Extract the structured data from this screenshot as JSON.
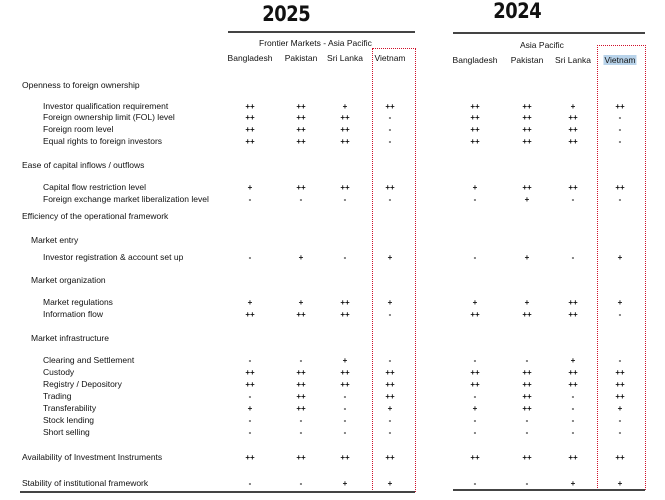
{
  "years": {
    "left": "2025",
    "right": "2024"
  },
  "groups": {
    "left": "Frontier Markets - Asia Pacific",
    "right": "Asia Pacific"
  },
  "countries_left": [
    "Bangladesh",
    "Pakistan",
    "Sri Lanka",
    "Vietnam"
  ],
  "countries_right": [
    "Bangladesh",
    "Pakistan",
    "Sri Lanka",
    "Vietnam"
  ],
  "highlight_color": "#d0102a",
  "rows": [
    {
      "label": "Openness to foreign ownership",
      "level": 0,
      "values": []
    },
    {
      "label": "Investor qualification requirement",
      "level": 2,
      "values": [
        "++",
        "++",
        "+",
        "++",
        "++",
        "++",
        "+",
        "++"
      ]
    },
    {
      "label": "Foreign ownership limit (FOL) level",
      "level": 2,
      "values": [
        "++",
        "++",
        "++",
        "-",
        "++",
        "++",
        "++",
        "-"
      ]
    },
    {
      "label": "Foreign room level",
      "level": 2,
      "values": [
        "++",
        "++",
        "++",
        "-",
        "++",
        "++",
        "++",
        "-"
      ]
    },
    {
      "label": "Equal rights to foreign investors",
      "level": 2,
      "values": [
        "++",
        "++",
        "++",
        "-",
        "++",
        "++",
        "++",
        "-"
      ]
    },
    {
      "label": "Ease of capital inflows / outflows",
      "level": 0,
      "values": []
    },
    {
      "label": "Capital flow restriction level",
      "level": 2,
      "values": [
        "+",
        "++",
        "++",
        "++",
        "+",
        "++",
        "++",
        "++"
      ]
    },
    {
      "label": "Foreign exchange market liberalization level",
      "level": 2,
      "values": [
        "-",
        "-",
        "-",
        "-",
        "-",
        "+",
        "-",
        "-"
      ]
    },
    {
      "label": "Efficiency of the operational framework",
      "level": 0,
      "values": []
    },
    {
      "label": "Market entry",
      "level": 1,
      "values": []
    },
    {
      "label": "Investor registration & account set up",
      "level": 2,
      "values": [
        "-",
        "+",
        "-",
        "+",
        "-",
        "+",
        "-",
        "+"
      ]
    },
    {
      "label": "Market organization",
      "level": 1,
      "values": []
    },
    {
      "label": "Market regulations",
      "level": 2,
      "values": [
        "+",
        "+",
        "++",
        "+",
        "+",
        "+",
        "++",
        "+"
      ]
    },
    {
      "label": "Information flow",
      "level": 2,
      "values": [
        "++",
        "++",
        "++",
        "-",
        "++",
        "++",
        "++",
        "-"
      ]
    },
    {
      "label": "Market infrastructure",
      "level": 1,
      "values": []
    },
    {
      "label": "Clearing and Settlement",
      "level": 2,
      "values": [
        "-",
        "-",
        "+",
        "-",
        "-",
        "-",
        "+",
        "-"
      ]
    },
    {
      "label": "Custody",
      "level": 2,
      "values": [
        "++",
        "++",
        "++",
        "++",
        "++",
        "++",
        "++",
        "++"
      ]
    },
    {
      "label": "Registry / Depository",
      "level": 2,
      "values": [
        "++",
        "++",
        "++",
        "++",
        "++",
        "++",
        "++",
        "++"
      ]
    },
    {
      "label": "Trading",
      "level": 2,
      "values": [
        "-",
        "++",
        "-",
        "++",
        "-",
        "++",
        "-",
        "++"
      ]
    },
    {
      "label": "Transferability",
      "level": 2,
      "values": [
        "+",
        "++",
        "-",
        "+",
        "+",
        "++",
        "-",
        "+"
      ]
    },
    {
      "label": "Stock lending",
      "level": 2,
      "values": [
        "-",
        "-",
        "-",
        "-",
        "-",
        "-",
        "-",
        "-"
      ]
    },
    {
      "label": "Short selling",
      "level": 2,
      "values": [
        "-",
        "-",
        "-",
        "-",
        "-",
        "-",
        "-",
        "-"
      ]
    },
    {
      "label": "Availability of Investment Instruments",
      "level": 0,
      "values": [
        "++",
        "++",
        "++",
        "++",
        "++",
        "++",
        "++",
        "++"
      ]
    },
    {
      "label": "Stability of institutional framework",
      "level": 0,
      "values": [
        "-",
        "-",
        "+",
        "+",
        "-",
        "-",
        "+",
        "+"
      ]
    }
  ]
}
